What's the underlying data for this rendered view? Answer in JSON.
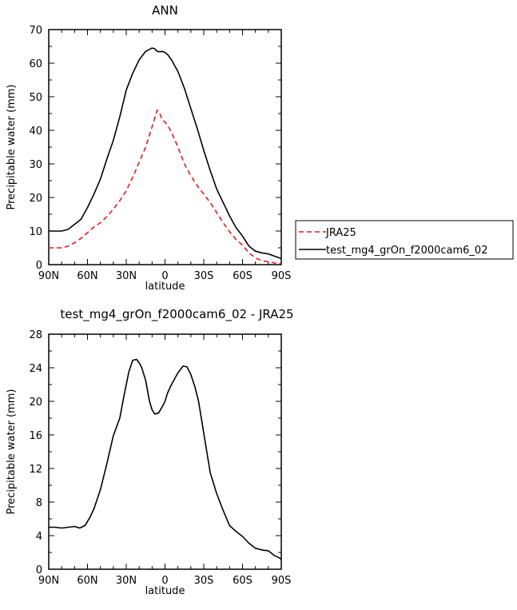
{
  "chart_data": [
    {
      "type": "line",
      "title": "ANN",
      "xlabel": "latitude",
      "ylabel": "Precipitable water (mm)",
      "xlim": [
        90,
        -90
      ],
      "ylim": [
        0,
        70
      ],
      "xticks": [
        90,
        60,
        30,
        0,
        -30,
        -60,
        -90
      ],
      "xtick_labels": [
        "90N",
        "60N",
        "30N",
        "0",
        "30S",
        "60S",
        "90S"
      ],
      "yticks": [
        0,
        10,
        20,
        30,
        40,
        50,
        60,
        70
      ],
      "ytick_labels": [
        "0",
        "10",
        "20",
        "30",
        "40",
        "50",
        "60",
        "70"
      ],
      "legend_position": "right",
      "series": [
        {
          "name": "JRA25",
          "color": "#e41a1c",
          "dash": "dashed",
          "x": [
            90,
            80,
            75,
            70,
            65,
            60,
            55,
            50,
            45,
            40,
            35,
            30,
            25,
            20,
            15,
            10,
            8,
            6,
            4,
            2,
            0,
            -2,
            -5,
            -10,
            -15,
            -20,
            -25,
            -30,
            -35,
            -40,
            -45,
            -50,
            -55,
            -60,
            -65,
            -70,
            -75,
            -80,
            -85,
            -90
          ],
          "y": [
            5,
            5,
            5.5,
            6.5,
            7.8,
            9.5,
            11.2,
            12.5,
            14.3,
            16.5,
            19,
            22,
            26,
            30.5,
            35,
            41,
            43.5,
            46,
            45,
            43,
            42.5,
            41.5,
            39.5,
            35,
            30,
            26.5,
            23.5,
            21,
            18.5,
            15.5,
            12.5,
            9.8,
            7.5,
            5.8,
            3.5,
            2,
            1.2,
            0.8,
            0.5,
            0.3
          ]
        },
        {
          "name": "test_mg4_grOn_f2000cam6_02",
          "color": "#000000",
          "dash": "solid",
          "x": [
            90,
            80,
            75,
            70,
            65,
            60,
            55,
            50,
            45,
            40,
            35,
            30,
            25,
            20,
            15,
            10,
            8,
            6,
            4,
            2,
            0,
            -2,
            -5,
            -10,
            -15,
            -20,
            -25,
            -30,
            -35,
            -40,
            -45,
            -50,
            -55,
            -60,
            -65,
            -70,
            -75,
            -80,
            -85,
            -90
          ],
          "y": [
            10,
            10,
            10.5,
            12,
            13.5,
            17,
            21,
            25.5,
            31.5,
            37,
            44,
            52,
            57,
            61,
            63.5,
            64.5,
            64.3,
            63.5,
            63.4,
            63.5,
            63.2,
            62.6,
            61,
            57.5,
            52.5,
            46.5,
            40.5,
            34,
            28,
            22.5,
            18.5,
            14.5,
            11,
            8.5,
            5.5,
            4,
            3.5,
            3.2,
            2.5,
            1.8
          ]
        }
      ]
    },
    {
      "type": "line",
      "title": "test_mg4_grOn_f2000cam6_02 - JRA25",
      "xlabel": "latitude",
      "ylabel": "Precipitable water (mm)",
      "xlim": [
        90,
        -90
      ],
      "ylim": [
        0,
        28
      ],
      "xticks": [
        90,
        60,
        30,
        0,
        -30,
        -60,
        -90
      ],
      "xtick_labels": [
        "90N",
        "60N",
        "30N",
        "0",
        "30S",
        "60S",
        "90S"
      ],
      "yticks": [
        0,
        4,
        8,
        12,
        16,
        20,
        24,
        28
      ],
      "ytick_labels": [
        "0",
        "4",
        "8",
        "12",
        "16",
        "20",
        "24",
        "28"
      ],
      "series": [
        {
          "color": "#000000",
          "dash": "solid",
          "x": [
            90,
            85,
            80,
            75,
            70,
            66,
            62,
            58,
            55,
            50,
            45,
            40,
            35,
            32,
            28,
            25,
            22,
            20,
            18,
            15,
            12,
            10,
            8,
            5,
            2,
            0,
            -2,
            -5,
            -10,
            -14,
            -17,
            -20,
            -23,
            -26,
            -30,
            -35,
            -40,
            -45,
            -50,
            -55,
            -60,
            -65,
            -70,
            -75,
            -80,
            -85,
            -88,
            -90
          ],
          "y": [
            5,
            5,
            4.9,
            5,
            5.1,
            4.9,
            5.2,
            6.2,
            7.2,
            9.5,
            12.6,
            15.9,
            18,
            20.5,
            23.5,
            24.9,
            25,
            24.6,
            24,
            22.5,
            20,
            19,
            18.5,
            18.6,
            19.4,
            20,
            21,
            22,
            23.4,
            24.2,
            24.1,
            23.2,
            21.8,
            20,
            16.2,
            11.5,
            9,
            7,
            5.2,
            4.5,
            3.9,
            3.1,
            2.5,
            2.3,
            2.2,
            1.6,
            1.4,
            1.2
          ]
        }
      ]
    }
  ]
}
